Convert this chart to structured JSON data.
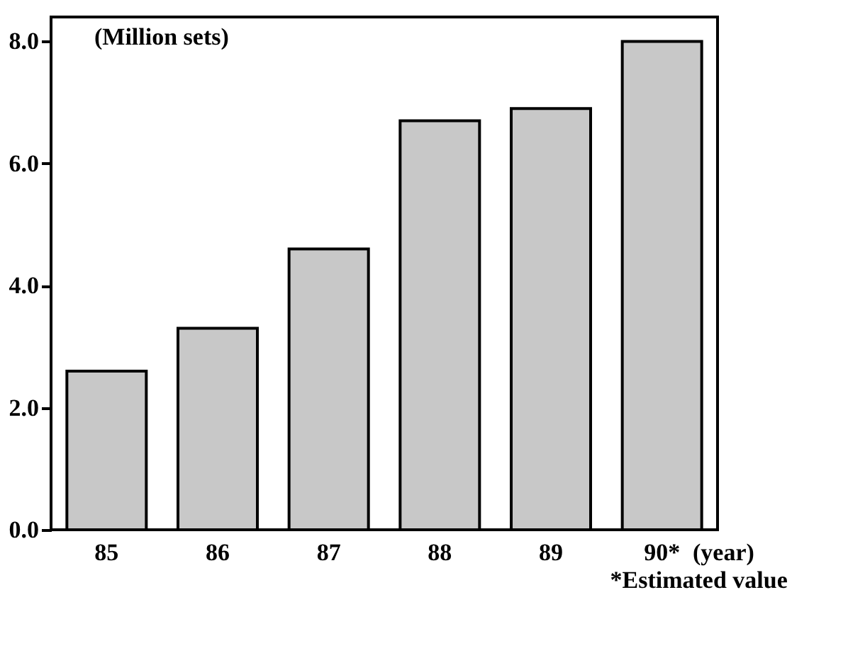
{
  "chart_data": {
    "type": "bar",
    "categories": [
      "85",
      "86",
      "87",
      "88",
      "89",
      "90*"
    ],
    "values": [
      2.6,
      3.3,
      4.6,
      6.7,
      6.9,
      8.0
    ],
    "color": "#c8c8c8",
    "ylabel": "(Million sets)",
    "xlabel": "(year)",
    "annotations": [
      "*Estimated value"
    ],
    "ylim": [
      0,
      8.4
    ],
    "yticks": [
      {
        "value": 0,
        "label": "0.0"
      },
      {
        "value": 2,
        "label": "2.0"
      },
      {
        "value": 4,
        "label": "4.0"
      },
      {
        "value": 6,
        "label": "6.0"
      },
      {
        "value": 8,
        "label": "8.0"
      }
    ],
    "grid": false
  }
}
